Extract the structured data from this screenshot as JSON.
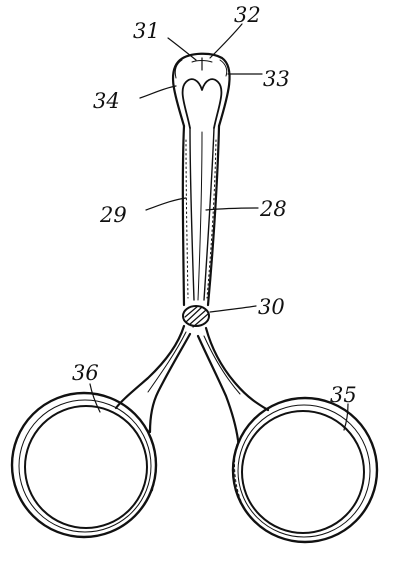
{
  "diagram": {
    "style": "patent line drawing",
    "ink_color": "#111111",
    "background": "#ffffff",
    "reference_numerals": {
      "n28": "28",
      "n29": "29",
      "n30": "30",
      "n31": "31",
      "n32": "32",
      "n33": "33",
      "n34": "34",
      "n35": "35",
      "n36": "36"
    }
  }
}
